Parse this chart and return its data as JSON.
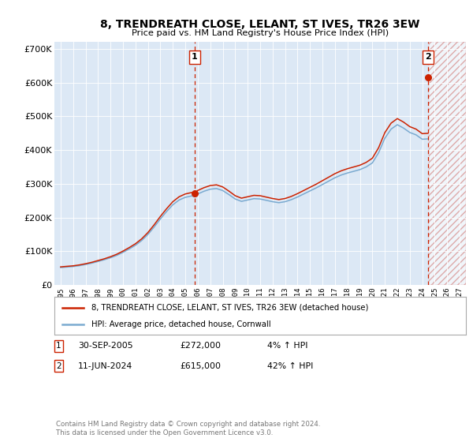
{
  "title": "8, TRENDREATH CLOSE, LELANT, ST IVES, TR26 3EW",
  "subtitle": "Price paid vs. HM Land Registry's House Price Index (HPI)",
  "ylim": [
    0,
    720000
  ],
  "yticks": [
    0,
    100000,
    200000,
    300000,
    400000,
    500000,
    600000,
    700000
  ],
  "ytick_labels": [
    "£0",
    "£100K",
    "£200K",
    "£300K",
    "£400K",
    "£500K",
    "£600K",
    "£700K"
  ],
  "plot_bg": "#dce8f5",
  "hpi_color": "#7aaad0",
  "price_color": "#cc2200",
  "marker1_date": 2005.75,
  "marker1_price": 272000,
  "marker2_date": 2024.44,
  "marker2_price": 615000,
  "legend_line1": "8, TRENDREATH CLOSE, LELANT, ST IVES, TR26 3EW (detached house)",
  "legend_line2": "HPI: Average price, detached house, Cornwall",
  "footer": "Contains HM Land Registry data © Crown copyright and database right 2024.\nThis data is licensed under the Open Government Licence v3.0.",
  "hpi_data_years": [
    1995,
    1995.5,
    1996,
    1996.5,
    1997,
    1997.5,
    1998,
    1998.5,
    1999,
    1999.5,
    2000,
    2000.5,
    2001,
    2001.5,
    2002,
    2002.5,
    2003,
    2003.5,
    2004,
    2004.5,
    2005,
    2005.25,
    2005.5,
    2005.75,
    2006,
    2006.5,
    2007,
    2007.5,
    2008,
    2008.5,
    2009,
    2009.5,
    2010,
    2010.5,
    2011,
    2011.5,
    2012,
    2012.5,
    2013,
    2013.5,
    2014,
    2014.5,
    2015,
    2015.5,
    2016,
    2016.5,
    2017,
    2017.5,
    2018,
    2018.5,
    2019,
    2019.5,
    2020,
    2020.5,
    2021,
    2021.5,
    2022,
    2022.5,
    2023,
    2023.5,
    2024,
    2024.44
  ],
  "hpi_data_values": [
    52000,
    53500,
    55000,
    57500,
    61000,
    65000,
    70000,
    75000,
    81000,
    88000,
    97000,
    107000,
    118000,
    132000,
    150000,
    172000,
    196000,
    218000,
    238000,
    252000,
    260000,
    262000,
    264000,
    262000,
    270000,
    278000,
    284000,
    286000,
    280000,
    268000,
    255000,
    248000,
    252000,
    256000,
    255000,
    251000,
    247000,
    244000,
    247000,
    253000,
    261000,
    270000,
    279000,
    288000,
    298000,
    308000,
    318000,
    326000,
    332000,
    337000,
    342000,
    350000,
    362000,
    392000,
    435000,
    462000,
    475000,
    465000,
    452000,
    445000,
    432000,
    433000
  ],
  "red_data_years": [
    1995,
    1995.5,
    1996,
    1996.5,
    1997,
    1997.5,
    1998,
    1998.5,
    1999,
    1999.5,
    2000,
    2000.5,
    2001,
    2001.5,
    2002,
    2002.5,
    2003,
    2003.5,
    2004,
    2004.5,
    2005,
    2005.25,
    2005.5,
    2005.75,
    2006,
    2006.5,
    2007,
    2007.5,
    2008,
    2008.5,
    2009,
    2009.5,
    2010,
    2010.5,
    2011,
    2011.5,
    2012,
    2012.5,
    2013,
    2013.5,
    2014,
    2014.5,
    2015,
    2015.5,
    2016,
    2016.5,
    2017,
    2017.5,
    2018,
    2018.5,
    2019,
    2019.5,
    2020,
    2020.5,
    2021,
    2021.5,
    2022,
    2022.5,
    2023,
    2023.5,
    2024,
    2024.44
  ],
  "red_scale_pre": 1.038,
  "red_scale_post": 1.42
}
